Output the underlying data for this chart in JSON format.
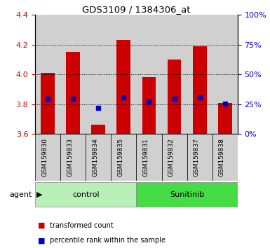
{
  "title": "GDS3109 / 1384306_at",
  "samples": [
    "GSM159830",
    "GSM159833",
    "GSM159834",
    "GSM159835",
    "GSM159831",
    "GSM159832",
    "GSM159837",
    "GSM159838"
  ],
  "bar_tops": [
    4.01,
    4.15,
    3.66,
    4.23,
    3.98,
    4.1,
    4.19,
    3.81
  ],
  "bar_bottom": 3.6,
  "blue_markers": [
    3.835,
    3.835,
    3.775,
    3.845,
    3.815,
    3.835,
    3.845,
    3.805
  ],
  "groups": [
    {
      "label": "control",
      "start": 0,
      "end": 4,
      "color": "#b8f0b8"
    },
    {
      "label": "Sunitinib",
      "start": 4,
      "end": 8,
      "color": "#44dd44"
    }
  ],
  "group_label": "agent",
  "ylim_left": [
    3.6,
    4.4
  ],
  "ylim_right": [
    0,
    100
  ],
  "yticks_left": [
    3.6,
    3.8,
    4.0,
    4.2,
    4.4
  ],
  "yticks_right": [
    0,
    25,
    50,
    75,
    100
  ],
  "bar_color": "#cc0000",
  "blue_color": "#0000cc",
  "bar_width": 0.55,
  "left_tick_color": "#cc0000",
  "right_tick_color": "#0000cc",
  "grid_color": "#000000",
  "col_bg_color": "#d0d0d0",
  "plot_bg": "#ffffff",
  "legend_red": "transformed count",
  "legend_blue": "percentile rank within the sample"
}
